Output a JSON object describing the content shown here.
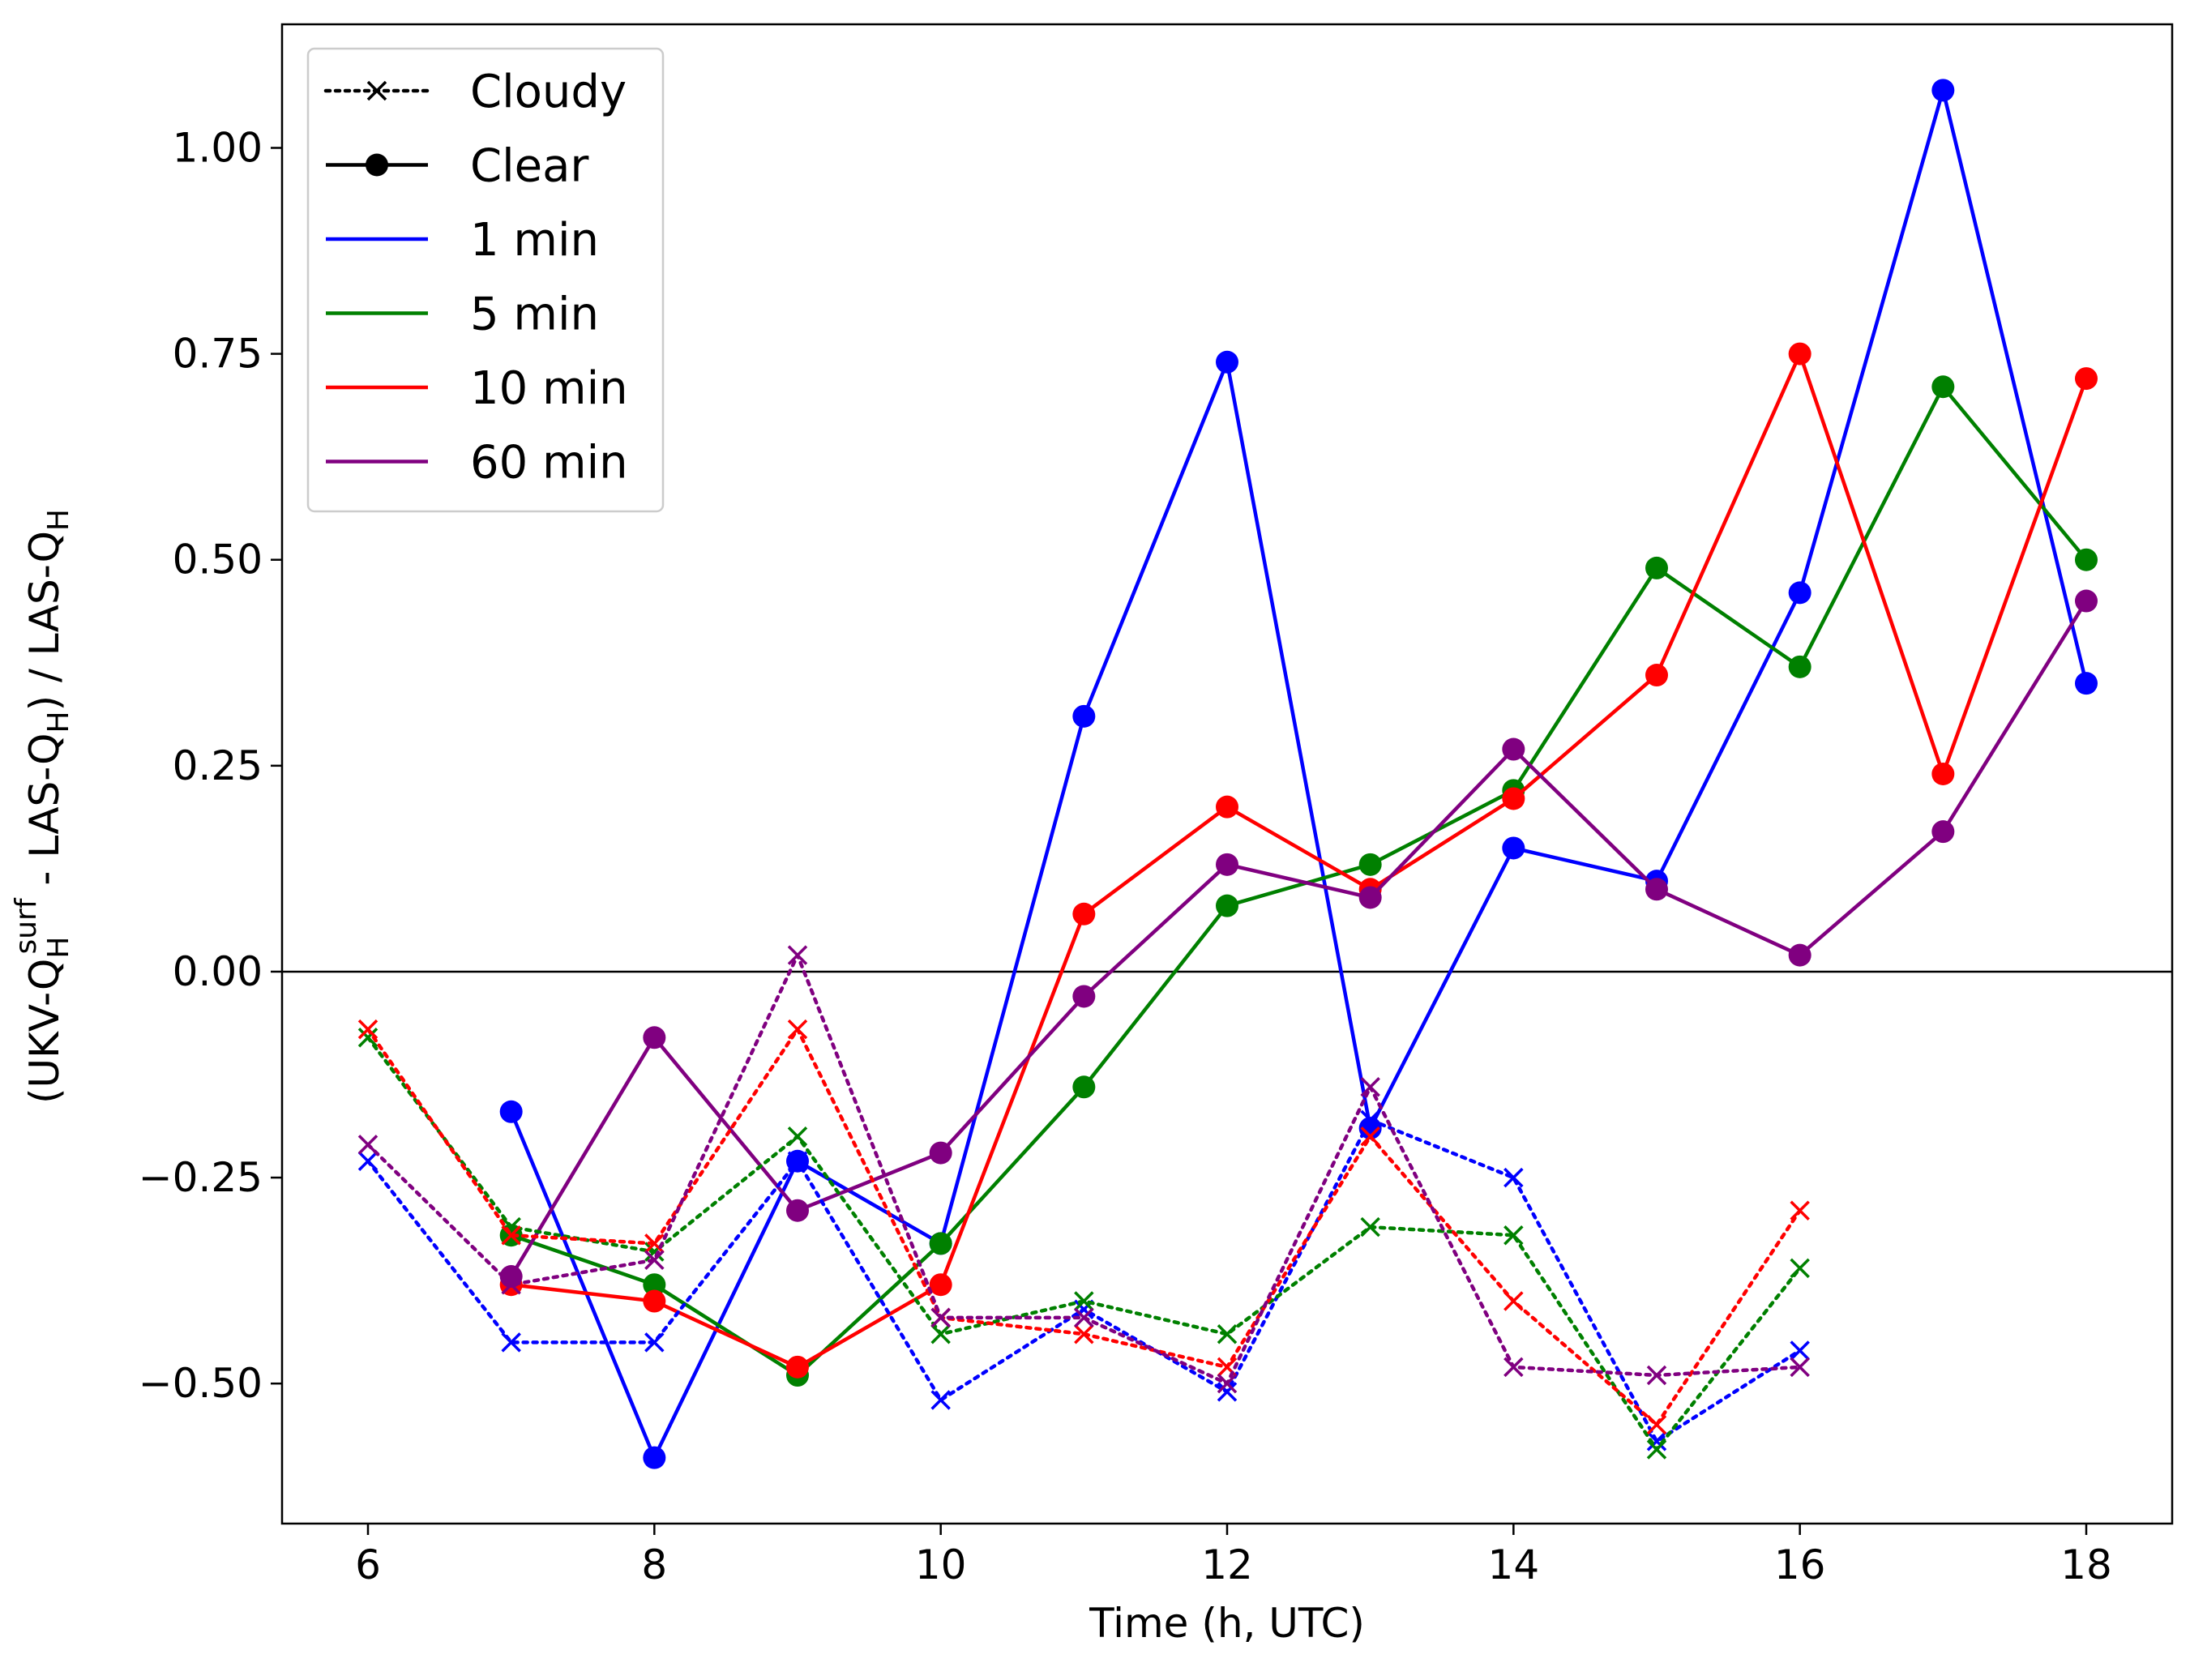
{
  "chart_data": {
    "type": "line",
    "title": "",
    "xlabel": "Time (h, UTC)",
    "ylabel": {
      "prefix": "(UKV-Q",
      "sub": "H",
      "sup": "surf",
      "middle": " - LAS-Q",
      "sub2": "H",
      "suffix": ") / LAS-Q",
      "sub3": "H"
    },
    "xlim": [
      5.4,
      18.6
    ],
    "ylim": [
      -0.67,
      1.15
    ],
    "xticks": [
      6,
      8,
      10,
      12,
      14,
      16,
      18
    ],
    "xtick_labels": [
      "6",
      "8",
      "10",
      "12",
      "14",
      "16",
      "18"
    ],
    "yticks": [
      -0.5,
      -0.25,
      0.0,
      0.25,
      0.5,
      0.75,
      1.0
    ],
    "ytick_labels": [
      "−0.50",
      "−0.25",
      "0.00",
      "0.25",
      "0.50",
      "0.75",
      "1.00"
    ],
    "zero_line": true,
    "grid": false,
    "legend": {
      "placement": "top-left",
      "entries": [
        {
          "label": "Cloudy",
          "style": "dotted",
          "marker": "x",
          "color": "#000000"
        },
        {
          "label": "Clear",
          "style": "solid",
          "marker": "o",
          "color": "#000000"
        },
        {
          "label": "1 min",
          "style": "solid",
          "marker": "none",
          "color": "#0000ff"
        },
        {
          "label": "5 min",
          "style": "solid",
          "marker": "none",
          "color": "#008000"
        },
        {
          "label": "10 min",
          "style": "solid",
          "marker": "none",
          "color": "#ff0000"
        },
        {
          "label": "60 min",
          "style": "solid",
          "marker": "none",
          "color": "#800080"
        }
      ]
    },
    "series": [
      {
        "group": "Clear",
        "resolution": "1 min",
        "color": "#0000ff",
        "style": "solid",
        "marker": "o",
        "x": [
          7,
          8,
          9,
          10,
          11,
          12,
          13,
          14,
          15,
          16,
          17,
          18
        ],
        "y": [
          -0.17,
          -0.59,
          -0.23,
          -0.33,
          0.31,
          0.74,
          -0.19,
          0.15,
          0.11,
          0.46,
          1.07,
          0.35
        ]
      },
      {
        "group": "Clear",
        "resolution": "5 min",
        "color": "#008000",
        "style": "solid",
        "marker": "o",
        "x": [
          7,
          8,
          9,
          10,
          11,
          12,
          13,
          14,
          15,
          16,
          17,
          18
        ],
        "y": [
          -0.32,
          -0.38,
          -0.49,
          -0.33,
          -0.14,
          0.08,
          0.13,
          0.22,
          0.49,
          0.37,
          0.71,
          0.5
        ]
      },
      {
        "group": "Clear",
        "resolution": "10 min",
        "color": "#ff0000",
        "style": "solid",
        "marker": "o",
        "x": [
          7,
          8,
          9,
          10,
          11,
          12,
          13,
          14,
          15,
          16,
          17,
          18
        ],
        "y": [
          -0.38,
          -0.4,
          -0.48,
          -0.38,
          0.07,
          0.2,
          0.1,
          0.21,
          0.36,
          0.75,
          0.24,
          0.72
        ]
      },
      {
        "group": "Clear",
        "resolution": "60 min",
        "color": "#800080",
        "style": "solid",
        "marker": "o",
        "x": [
          7,
          8,
          9,
          10,
          11,
          12,
          13,
          14,
          15,
          16,
          17,
          18
        ],
        "y": [
          -0.37,
          -0.08,
          -0.29,
          -0.22,
          -0.03,
          0.13,
          0.09,
          0.27,
          0.1,
          0.02,
          0.17,
          0.45
        ]
      },
      {
        "group": "Cloudy",
        "resolution": "1 min",
        "color": "#0000ff",
        "style": "dotted",
        "marker": "x",
        "x": [
          6,
          7,
          8,
          9,
          10,
          11,
          12,
          13,
          14,
          15,
          16
        ],
        "y": [
          -0.23,
          -0.45,
          -0.45,
          -0.23,
          -0.52,
          -0.41,
          -0.51,
          -0.18,
          -0.25,
          -0.57,
          -0.46
        ]
      },
      {
        "group": "Cloudy",
        "resolution": "5 min",
        "color": "#008000",
        "style": "dotted",
        "marker": "x",
        "x": [
          6,
          7,
          8,
          9,
          10,
          11,
          12,
          13,
          14,
          15,
          16
        ],
        "y": [
          -0.08,
          -0.31,
          -0.34,
          -0.2,
          -0.44,
          -0.4,
          -0.44,
          -0.31,
          -0.32,
          -0.58,
          -0.36
        ]
      },
      {
        "group": "Cloudy",
        "resolution": "10 min",
        "color": "#ff0000",
        "style": "dotted",
        "marker": "x",
        "x": [
          6,
          7,
          8,
          9,
          10,
          11,
          12,
          13,
          14,
          15,
          16
        ],
        "y": [
          -0.07,
          -0.32,
          -0.33,
          -0.07,
          -0.42,
          -0.44,
          -0.48,
          -0.2,
          -0.4,
          -0.55,
          -0.29
        ]
      },
      {
        "group": "Cloudy",
        "resolution": "60 min",
        "color": "#800080",
        "style": "dotted",
        "marker": "x",
        "x": [
          6,
          7,
          8,
          9,
          10,
          11,
          12,
          13,
          14,
          15,
          16
        ],
        "y": [
          -0.21,
          -0.38,
          -0.35,
          0.02,
          -0.42,
          -0.42,
          -0.5,
          -0.14,
          -0.48,
          -0.49,
          -0.48
        ]
      }
    ]
  }
}
